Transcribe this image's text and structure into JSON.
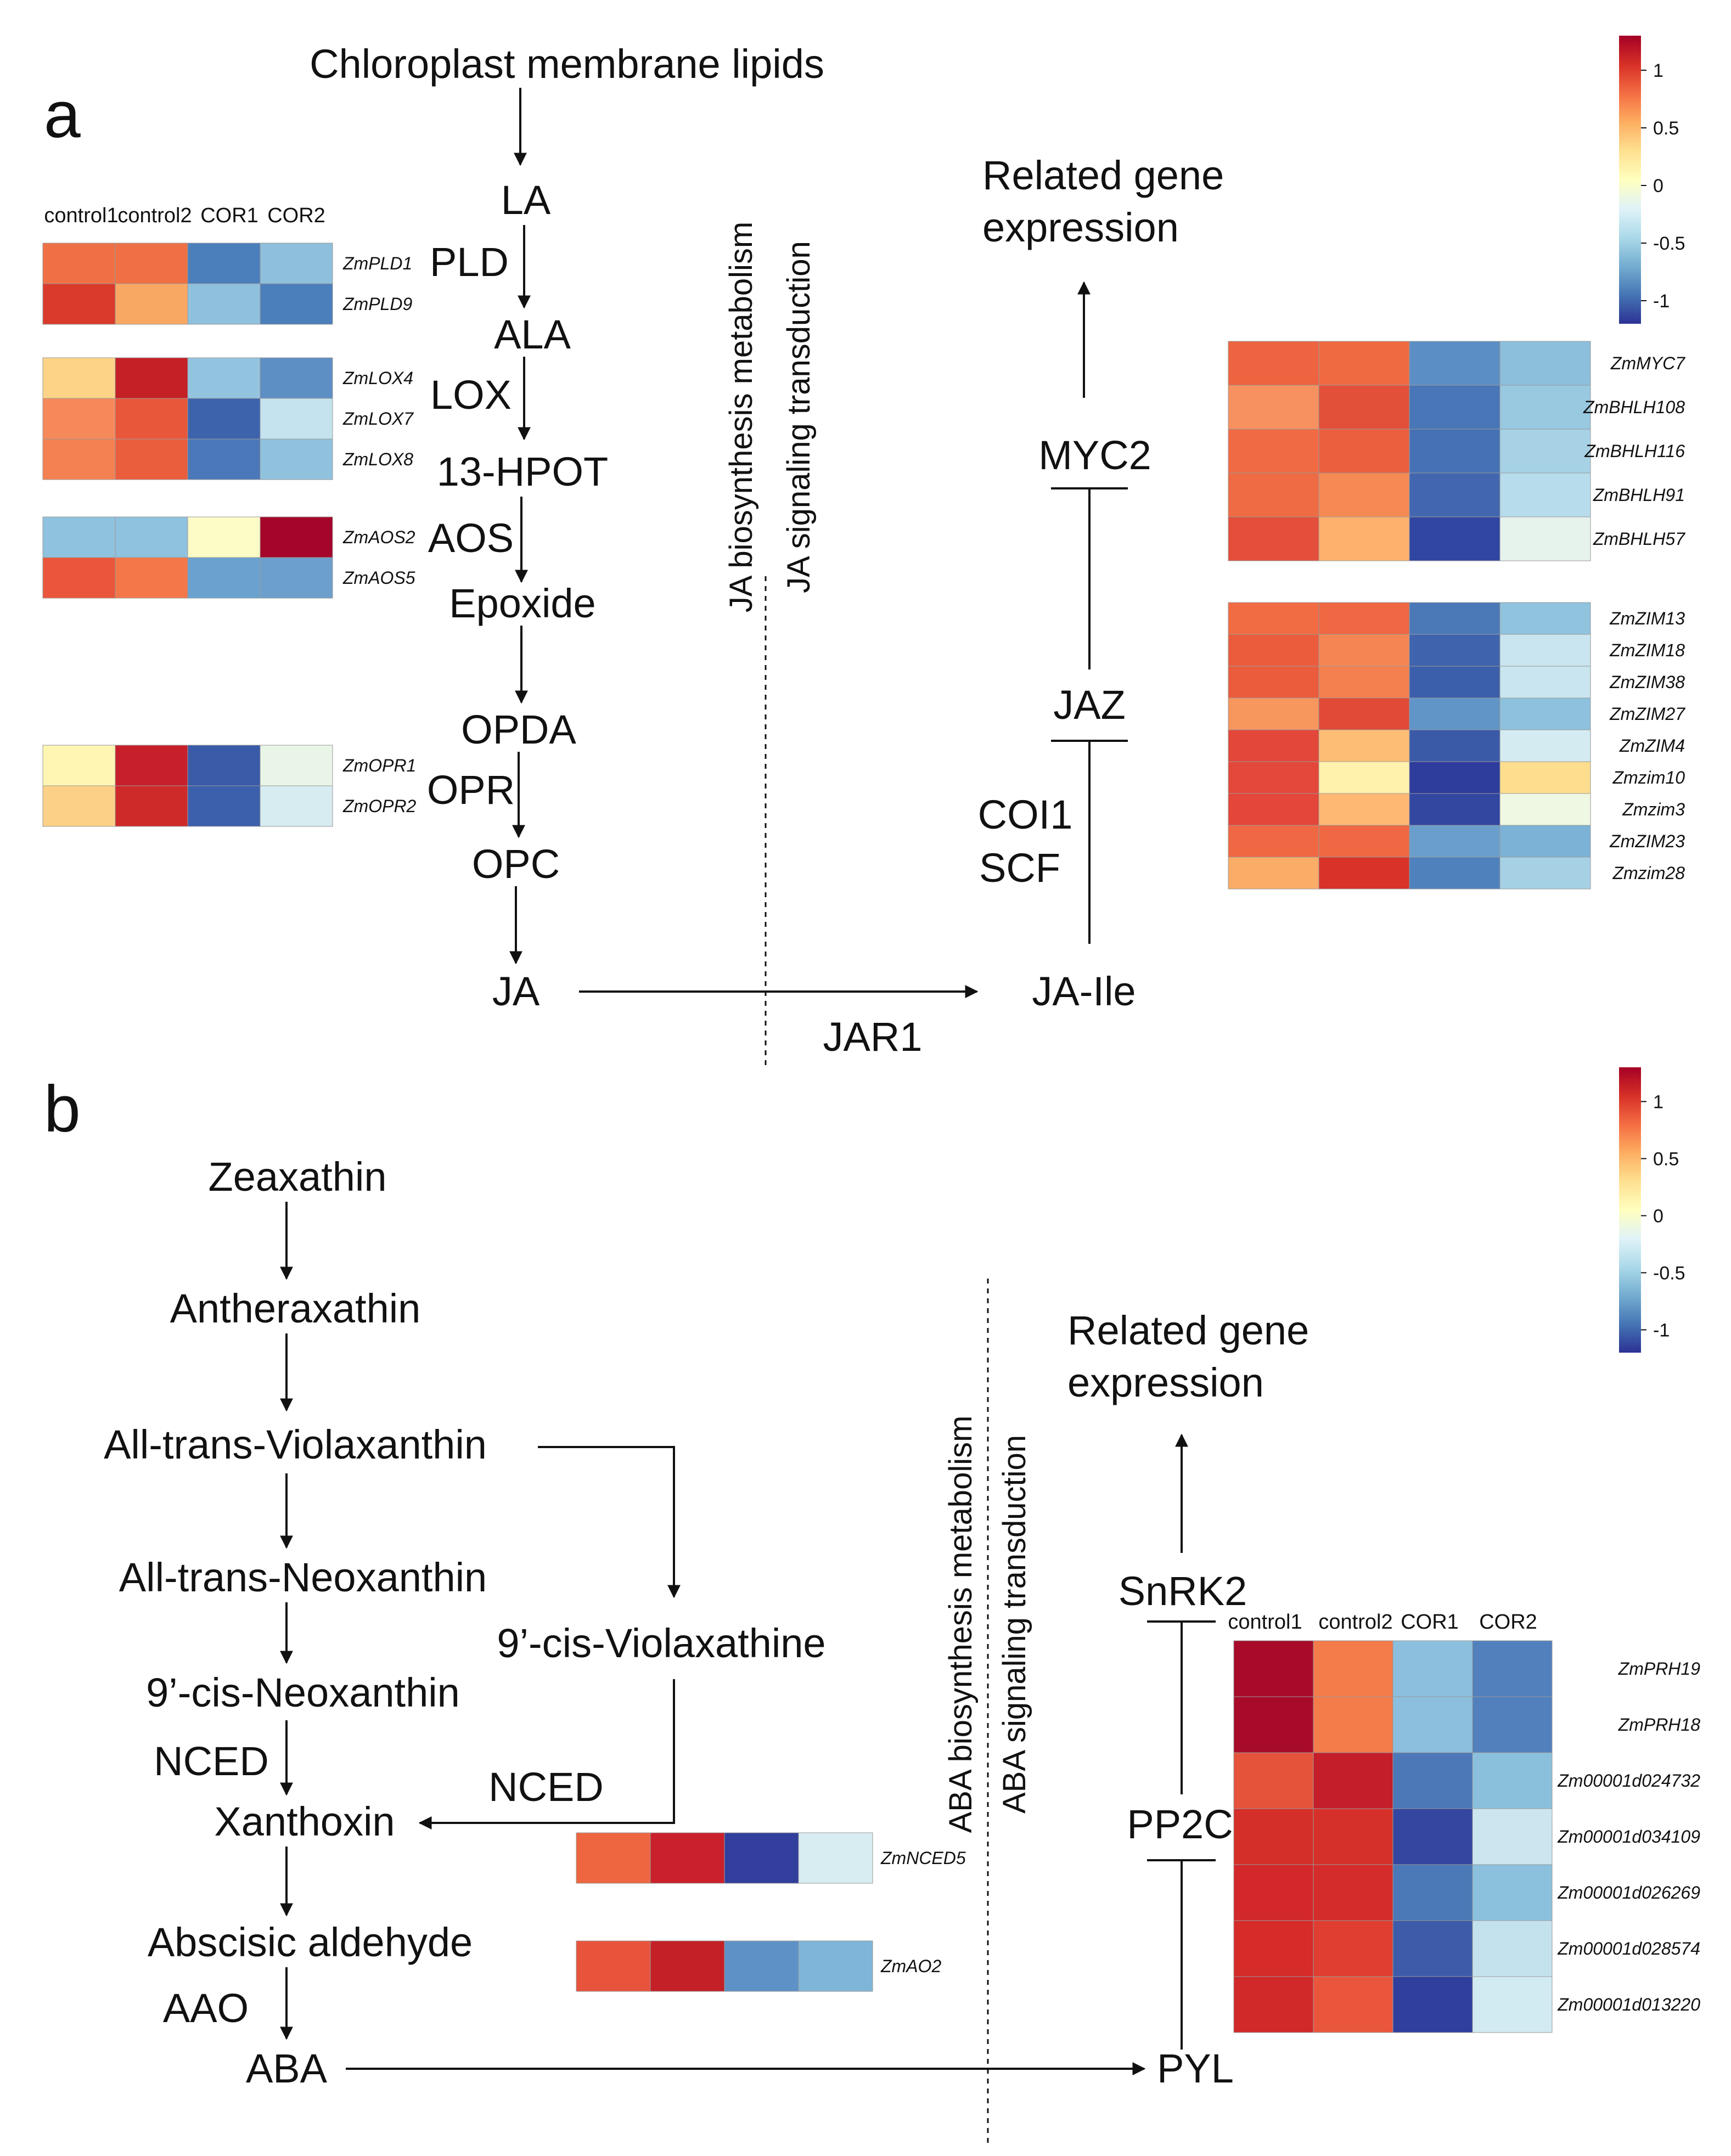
{
  "panels": {
    "a": "a",
    "b": "b"
  },
  "ja": {
    "nodes": {
      "chloroplast": "Chloroplast membrane lipids",
      "la": "LA",
      "pld": "PLD",
      "ala": "ALA",
      "lox": "LOX",
      "hpot": "13-HPOT",
      "aos": "AOS",
      "epoxide": "Epoxide",
      "opda": "OPDA",
      "opr": "OPR",
      "opc": "OPC",
      "ja": "JA",
      "jar1": "JAR1",
      "ja_ile": "JA-Ile",
      "coi1": "COI1",
      "scf": "SCF",
      "jaz": "JAZ",
      "myc2": "MYC2",
      "related1": "Related gene",
      "related2": "expression"
    },
    "boundary": {
      "biosynthesis": "JA biosynthesis metabolism",
      "signaling": "JA signaling transduction"
    },
    "left_columns": [
      "control1",
      "control2",
      "COR1",
      "COR2"
    ],
    "left_heatmaps": [
      {
        "genes": [
          "ZmPLD1",
          "ZmPLD9"
        ],
        "colors": [
          [
            "#ef7044",
            "#ef7044",
            "#4a7fbc",
            "#8ebfdc"
          ],
          [
            "#d93a2b",
            "#f9a864",
            "#8fc1dd",
            "#4b7fbb"
          ]
        ]
      },
      {
        "genes": [
          "ZmLOX4",
          "ZmLOX7",
          "ZmLOX8"
        ],
        "colors": [
          [
            "#fdd487",
            "#c42026",
            "#93c4df",
            "#5e8fc4"
          ],
          [
            "#f6895a",
            "#e9573a",
            "#3d63ad",
            "#c4e3ee"
          ],
          [
            "#f48151",
            "#ea5e3e",
            "#4b78b8",
            "#90c2de"
          ]
        ]
      },
      {
        "genes": [
          "ZmAOS2",
          "ZmAOS5"
        ],
        "colors": [
          [
            "#8fc2de",
            "#8fc2de",
            "#fdfbc6",
            "#a5052a"
          ],
          [
            "#e9563b",
            "#f37748",
            "#6aa2cf",
            "#6c9fcc"
          ]
        ]
      },
      {
        "genes": [
          "ZmOPR1",
          "ZmOPR2"
        ],
        "colors": [
          [
            "#fff6b3",
            "#c8202b",
            "#3a5ba8",
            "#e9f5e6"
          ],
          [
            "#fdd087",
            "#cf2a2a",
            "#3d60ad",
            "#d6ecf1"
          ]
        ]
      }
    ],
    "right_columns": [],
    "right_heatmaps": [
      {
        "genes": [
          "ZmMYC7",
          "ZmBHLH108",
          "ZmBHLH116",
          "ZmBHLH91",
          "ZmBHLH57"
        ],
        "colors": [
          [
            "#ee6340",
            "#f06a41",
            "#5b8ec4",
            "#8bbfdc"
          ],
          [
            "#f7915f",
            "#e3503a",
            "#4876b7",
            "#98c9e1"
          ],
          [
            "#f06a44",
            "#eb5f3e",
            "#4672b5",
            "#a7d2e6"
          ],
          [
            "#ee6b43",
            "#f58a55",
            "#4266b0",
            "#b7dcec"
          ],
          [
            "#e44f3b",
            "#fdb16c",
            "#3146a1",
            "#e6f3ed"
          ]
        ]
      },
      {
        "genes": [
          "ZmZIM13",
          "ZmZIM18",
          "ZmZIM38",
          "ZmZIM27",
          "ZmZIM4",
          "Zmzim10",
          "Zmzim3",
          "ZmZIM23",
          "Zmzim28"
        ],
        "colors": [
          [
            "#f16b43",
            "#ef6743",
            "#4b79b8",
            "#90c3de"
          ],
          [
            "#ea5c3c",
            "#f58654",
            "#3f63ad",
            "#c9e5ef"
          ],
          [
            "#ea5c3c",
            "#f4804f",
            "#3c5fab",
            "#c9e5ef"
          ],
          [
            "#f7965d",
            "#e14a37",
            "#6195c8",
            "#8ec1dd"
          ],
          [
            "#e3473a",
            "#fdbd74",
            "#3a5aa8",
            "#d4ebf2"
          ],
          [
            "#e4483a",
            "#fff2ad",
            "#2e3c9b",
            "#fddd8e"
          ],
          [
            "#e4463a",
            "#fdb873",
            "#3346a0",
            "#eef8e3"
          ],
          [
            "#ef6843",
            "#ef6843",
            "#6a9ecc",
            "#7bb2d6"
          ],
          [
            "#fbac67",
            "#d93229",
            "#4f82bd",
            "#a6d1e5"
          ]
        ]
      }
    ],
    "legend": {
      "ticks": [
        "1",
        "0.5",
        "0",
        "-0.5",
        "-1"
      ]
    }
  },
  "aba": {
    "nodes": {
      "zeaxathin": "Zeaxathin",
      "antheraxathin": "Antheraxathin",
      "violax": "All-trans-Violaxanthin",
      "neox": "All-trans-Neoxanthin",
      "cisviolax": "9’-cis-Violaxathine",
      "cisneox": "9’-cis-Neoxanthin",
      "nced_left": "NCED",
      "nced_right": "NCED",
      "xanthoxin": "Xanthoxin",
      "abscisic": "Abscisic aldehyde",
      "aao": "AAO",
      "aba": "ABA",
      "pyl": "PYL",
      "pp2c": "PP2C",
      "snrk2": "SnRK2",
      "related1": "Related gene",
      "related2": "expression"
    },
    "boundary": {
      "biosynthesis": "ABA biosynthesis metabolism",
      "signaling": "ABA signaling transduction"
    },
    "nced_heatmaps": [
      {
        "gene": "ZmNCED5",
        "colors": [
          "#ee6640",
          "#c9202b",
          "#323f9c",
          "#d8edf2"
        ]
      },
      {
        "gene": "ZmAO2",
        "colors": [
          "#e8533b",
          "#c32127",
          "#5e91c6",
          "#7fb5d8"
        ]
      }
    ],
    "right_columns": [
      "control1",
      "control2",
      "COR1",
      "COR2"
    ],
    "right_heatmap": {
      "genes": [
        "ZmPRH19",
        "ZmPRH18",
        "Zm00001d024732",
        "Zm00001d034109",
        "Zm00001d026269",
        "Zm00001d028574",
        "Zm00001d013220"
      ],
      "colors": [
        [
          "#a70b29",
          "#f47b4a",
          "#8cbfdd",
          "#5280bd"
        ],
        [
          "#a70b29",
          "#f47b4a",
          "#8cbfdd",
          "#5280bd"
        ],
        [
          "#e5533b",
          "#c31e2a",
          "#4d78b8",
          "#8bc0dc"
        ],
        [
          "#d52f29",
          "#d5312a",
          "#3446a0",
          "#cce6f0"
        ],
        [
          "#d3282b",
          "#d42c2a",
          "#4b78b7",
          "#8cc1dd"
        ],
        [
          "#d52b29",
          "#df3e31",
          "#3d5ba9",
          "#c4e2ee"
        ],
        [
          "#d12829",
          "#e9563c",
          "#303e9c",
          "#d2eaf2"
        ]
      ]
    },
    "legend": {
      "ticks": [
        "1",
        "0.5",
        "0",
        "-0.5",
        "-1"
      ]
    }
  },
  "colors": {
    "text": "#111111",
    "background": "#ffffff"
  },
  "colormap": [
    "#2c3294",
    "#4575b4",
    "#74add1",
    "#abd9e9",
    "#e0f3f8",
    "#ffffbf",
    "#fee090",
    "#fdae61",
    "#f46d43",
    "#d73027",
    "#a50026"
  ]
}
